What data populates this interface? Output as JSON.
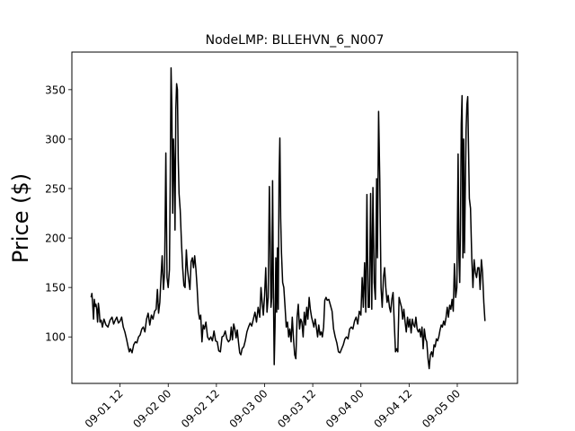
{
  "chart_data": {
    "type": "line",
    "title": "NodeLMP: BLLEHVN_6_N007",
    "xlabel": "",
    "ylabel": "Price ($)",
    "x_unit": "hours since 2022-09-01 00:00 (plot left edge)",
    "xlim": [
      0,
      111
    ],
    "ylim": [
      53,
      388
    ],
    "x_tick_values": [
      12,
      24,
      36,
      48,
      60,
      72,
      84,
      96
    ],
    "x_tick_labels": [
      "09-01 12",
      "09-02 00",
      "09-02 12",
      "09-03 00",
      "09-03 12",
      "09-04 00",
      "09-04 12",
      "09-05 00"
    ],
    "y_ticks": [
      100,
      150,
      200,
      250,
      300,
      350
    ],
    "grid": false,
    "legend": "none",
    "line_color": "#000000",
    "series": [
      {
        "name": "",
        "points": [
          [
            4.8,
            140
          ],
          [
            5.0,
            144
          ],
          [
            5.2,
            132
          ],
          [
            5.4,
            118
          ],
          [
            5.6,
            138
          ],
          [
            5.8,
            131
          ],
          [
            6.0,
            133
          ],
          [
            6.2,
            128
          ],
          [
            6.4,
            115
          ],
          [
            6.6,
            134
          ],
          [
            6.8,
            127
          ],
          [
            7.0,
            115
          ],
          [
            7.3,
            117
          ],
          [
            7.6,
            110
          ],
          [
            8.0,
            118
          ],
          [
            8.5,
            112
          ],
          [
            9.0,
            110
          ],
          [
            9.5,
            117
          ],
          [
            10.0,
            120
          ],
          [
            10.4,
            113
          ],
          [
            10.8,
            117
          ],
          [
            11.2,
            120
          ],
          [
            11.6,
            114
          ],
          [
            12.0,
            116
          ],
          [
            12.4,
            120
          ],
          [
            12.8,
            110
          ],
          [
            13.2,
            105
          ],
          [
            13.6,
            98
          ],
          [
            14.0,
            90
          ],
          [
            14.3,
            85
          ],
          [
            14.6,
            88
          ],
          [
            15.0,
            84
          ],
          [
            15.4,
            92
          ],
          [
            15.8,
            95
          ],
          [
            16.2,
            94
          ],
          [
            16.6,
            100
          ],
          [
            17.0,
            102
          ],
          [
            17.4,
            108
          ],
          [
            17.8,
            110
          ],
          [
            18.2,
            105
          ],
          [
            18.6,
            118
          ],
          [
            19.0,
            124
          ],
          [
            19.4,
            112
          ],
          [
            19.8,
            122
          ],
          [
            20.2,
            118
          ],
          [
            20.6,
            126
          ],
          [
            21.0,
            128
          ],
          [
            21.3,
            148
          ],
          [
            21.6,
            124
          ],
          [
            21.9,
            135
          ],
          [
            22.2,
            160
          ],
          [
            22.5,
            182
          ],
          [
            22.8,
            148
          ],
          [
            23.1,
            165
          ],
          [
            23.4,
            286
          ],
          [
            23.7,
            160
          ],
          [
            24.0,
            150
          ],
          [
            24.3,
            168
          ],
          [
            24.5,
            260
          ],
          [
            24.7,
            372
          ],
          [
            24.9,
            330
          ],
          [
            25.1,
            225
          ],
          [
            25.3,
            300
          ],
          [
            25.5,
            275
          ],
          [
            25.7,
            208
          ],
          [
            25.9,
            330
          ],
          [
            26.1,
            356
          ],
          [
            26.3,
            350
          ],
          [
            26.5,
            280
          ],
          [
            26.7,
            245
          ],
          [
            27.0,
            228
          ],
          [
            27.3,
            195
          ],
          [
            27.6,
            170
          ],
          [
            27.9,
            152
          ],
          [
            28.2,
            150
          ],
          [
            28.5,
            188
          ],
          [
            28.8,
            168
          ],
          [
            29.1,
            158
          ],
          [
            29.4,
            148
          ],
          [
            29.7,
            176
          ],
          [
            30.0,
            180
          ],
          [
            30.3,
            170
          ],
          [
            30.6,
            182
          ],
          [
            30.9,
            168
          ],
          [
            31.2,
            150
          ],
          [
            31.5,
            126
          ],
          [
            31.8,
            118
          ],
          [
            32.1,
            122
          ],
          [
            32.4,
            95
          ],
          [
            32.7,
            112
          ],
          [
            33.0,
            108
          ],
          [
            33.4,
            115
          ],
          [
            33.8,
            100
          ],
          [
            34.2,
            97
          ],
          [
            34.6,
            100
          ],
          [
            35.0,
            96
          ],
          [
            35.4,
            106
          ],
          [
            35.8,
            96
          ],
          [
            36.2,
            95
          ],
          [
            36.6,
            86
          ],
          [
            37.0,
            85
          ],
          [
            37.4,
            100
          ],
          [
            37.8,
            101
          ],
          [
            38.2,
            106
          ],
          [
            38.6,
            98
          ],
          [
            39.0,
            95
          ],
          [
            39.4,
            97
          ],
          [
            39.7,
            110
          ],
          [
            40.0,
            97
          ],
          [
            40.3,
            113
          ],
          [
            40.6,
            108
          ],
          [
            40.9,
            99
          ],
          [
            41.2,
            107
          ],
          [
            41.5,
            95
          ],
          [
            41.8,
            84
          ],
          [
            42.1,
            82
          ],
          [
            42.4,
            88
          ],
          [
            42.8,
            90
          ],
          [
            43.2,
            96
          ],
          [
            43.6,
            105
          ],
          [
            44.0,
            110
          ],
          [
            44.4,
            114
          ],
          [
            44.8,
            111
          ],
          [
            45.2,
            118
          ],
          [
            45.6,
            125
          ],
          [
            46.0,
            115
          ],
          [
            46.4,
            130
          ],
          [
            46.8,
            120
          ],
          [
            47.1,
            150
          ],
          [
            47.4,
            135
          ],
          [
            47.7,
            122
          ],
          [
            48.0,
            142
          ],
          [
            48.3,
            170
          ],
          [
            48.6,
            125
          ],
          [
            48.9,
            140
          ],
          [
            49.2,
            252
          ],
          [
            49.4,
            200
          ],
          [
            49.6,
            130
          ],
          [
            49.8,
            140
          ],
          [
            50.0,
            258
          ],
          [
            50.2,
            150
          ],
          [
            50.4,
            72
          ],
          [
            50.6,
            110
          ],
          [
            50.8,
            180
          ],
          [
            51.0,
            125
          ],
          [
            51.2,
            190
          ],
          [
            51.4,
            128
          ],
          [
            51.6,
            260
          ],
          [
            51.8,
            301
          ],
          [
            52.0,
            220
          ],
          [
            52.2,
            185
          ],
          [
            52.5,
            155
          ],
          [
            52.8,
            150
          ],
          [
            53.1,
            130
          ],
          [
            53.4,
            110
          ],
          [
            53.7,
            115
          ],
          [
            54.0,
            100
          ],
          [
            54.3,
            108
          ],
          [
            54.6,
            95
          ],
          [
            54.9,
            120
          ],
          [
            55.2,
            98
          ],
          [
            55.5,
            82
          ],
          [
            55.8,
            78
          ],
          [
            56.1,
            120
          ],
          [
            56.4,
            133
          ],
          [
            56.7,
            108
          ],
          [
            57.0,
            118
          ],
          [
            57.3,
            115
          ],
          [
            57.6,
            100
          ],
          [
            57.9,
            125
          ],
          [
            58.2,
            112
          ],
          [
            58.5,
            130
          ],
          [
            58.8,
            118
          ],
          [
            59.1,
            140
          ],
          [
            59.4,
            128
          ],
          [
            59.7,
            120
          ],
          [
            60.0,
            115
          ],
          [
            60.3,
            110
          ],
          [
            60.6,
            118
          ],
          [
            60.9,
            110
          ],
          [
            61.2,
            100
          ],
          [
            61.5,
            112
          ],
          [
            61.8,
            102
          ],
          [
            62.1,
            105
          ],
          [
            62.4,
            100
          ],
          [
            62.7,
            110
          ],
          [
            63.0,
            137
          ],
          [
            63.3,
            140
          ],
          [
            63.6,
            137
          ],
          [
            64.0,
            138
          ],
          [
            64.4,
            132
          ],
          [
            64.8,
            126
          ],
          [
            65.2,
            108
          ],
          [
            65.6,
            100
          ],
          [
            66.0,
            94
          ],
          [
            66.4,
            85
          ],
          [
            66.8,
            84
          ],
          [
            67.2,
            88
          ],
          [
            67.6,
            92
          ],
          [
            68.0,
            98
          ],
          [
            68.4,
            100
          ],
          [
            68.8,
            98
          ],
          [
            69.2,
            108
          ],
          [
            69.6,
            110
          ],
          [
            70.0,
            108
          ],
          [
            70.4,
            116
          ],
          [
            70.8,
            120
          ],
          [
            71.2,
            113
          ],
          [
            71.6,
            126
          ],
          [
            72.0,
            122
          ],
          [
            72.3,
            160
          ],
          [
            72.6,
            130
          ],
          [
            72.9,
            175
          ],
          [
            73.2,
            125
          ],
          [
            73.5,
            244
          ],
          [
            73.8,
            130
          ],
          [
            74.1,
            130
          ],
          [
            74.4,
            245
          ],
          [
            74.7,
            128
          ],
          [
            75.0,
            251
          ],
          [
            75.3,
            155
          ],
          [
            75.6,
            138
          ],
          [
            75.9,
            260
          ],
          [
            76.1,
            180
          ],
          [
            76.4,
            328
          ],
          [
            76.7,
            260
          ],
          [
            77.0,
            150
          ],
          [
            77.3,
            130
          ],
          [
            77.6,
            160
          ],
          [
            77.9,
            170
          ],
          [
            78.2,
            150
          ],
          [
            78.5,
            135
          ],
          [
            78.8,
            142
          ],
          [
            79.1,
            130
          ],
          [
            79.4,
            125
          ],
          [
            79.7,
            138
          ],
          [
            80.0,
            145
          ],
          [
            80.3,
            115
          ],
          [
            80.6,
            85
          ],
          [
            80.9,
            88
          ],
          [
            81.2,
            85
          ],
          [
            81.5,
            140
          ],
          [
            81.8,
            135
          ],
          [
            82.1,
            130
          ],
          [
            82.4,
            118
          ],
          [
            82.7,
            128
          ],
          [
            83.0,
            115
          ],
          [
            83.3,
            105
          ],
          [
            83.6,
            120
          ],
          [
            83.9,
            110
          ],
          [
            84.2,
            118
          ],
          [
            84.5,
            104
          ],
          [
            84.8,
            118
          ],
          [
            85.1,
            112
          ],
          [
            85.4,
            110
          ],
          [
            85.7,
            120
          ],
          [
            86.0,
            108
          ],
          [
            86.3,
            105
          ],
          [
            86.6,
            108
          ],
          [
            86.9,
            100
          ],
          [
            87.2,
            110
          ],
          [
            87.5,
            88
          ],
          [
            87.8,
            108
          ],
          [
            88.1,
            98
          ],
          [
            88.4,
            95
          ],
          [
            88.7,
            78
          ],
          [
            89.0,
            68
          ],
          [
            89.3,
            82
          ],
          [
            89.6,
            85
          ],
          [
            89.9,
            80
          ],
          [
            90.2,
            92
          ],
          [
            90.5,
            90
          ],
          [
            90.8,
            98
          ],
          [
            91.1,
            96
          ],
          [
            91.4,
            100
          ],
          [
            91.7,
            107
          ],
          [
            92.0,
            112
          ],
          [
            92.3,
            110
          ],
          [
            92.6,
            116
          ],
          [
            92.9,
            112
          ],
          [
            93.2,
            120
          ],
          [
            93.5,
            130
          ],
          [
            93.8,
            120
          ],
          [
            94.1,
            132
          ],
          [
            94.4,
            128
          ],
          [
            94.7,
            138
          ],
          [
            95.0,
            126
          ],
          [
            95.3,
            174
          ],
          [
            95.6,
            140
          ],
          [
            95.9,
            150
          ],
          [
            96.2,
            285
          ],
          [
            96.4,
            180
          ],
          [
            96.6,
            155
          ],
          [
            96.8,
            210
          ],
          [
            97.0,
            315
          ],
          [
            97.2,
            344
          ],
          [
            97.4,
            180
          ],
          [
            97.6,
            300
          ],
          [
            97.8,
            185
          ],
          [
            98.0,
            250
          ],
          [
            98.2,
            310
          ],
          [
            98.4,
            335
          ],
          [
            98.6,
            343
          ],
          [
            98.8,
            290
          ],
          [
            99.0,
            240
          ],
          [
            99.3,
            230
          ],
          [
            99.6,
            180
          ],
          [
            99.9,
            150
          ],
          [
            100.2,
            178
          ],
          [
            100.5,
            165
          ],
          [
            100.8,
            160
          ],
          [
            101.1,
            170
          ],
          [
            101.4,
            170
          ],
          [
            101.7,
            148
          ],
          [
            102.0,
            178
          ],
          [
            102.3,
            165
          ],
          [
            102.6,
            135
          ],
          [
            102.9,
            116
          ]
        ]
      }
    ]
  }
}
